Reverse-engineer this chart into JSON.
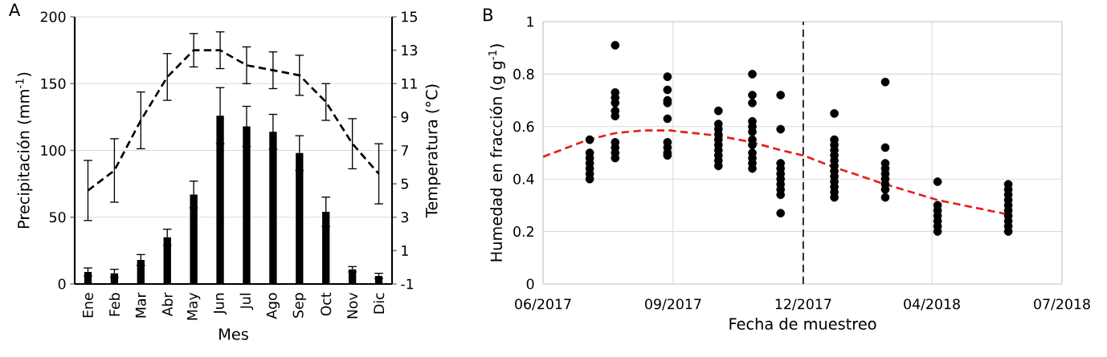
{
  "chart_data": [
    {
      "type": "bar",
      "title": "A",
      "xlabel": "Mes",
      "ylabel": "Precipitación (mm$^{-1}$)",
      "y2label": "Temperatura (°C)",
      "categories": [
        "Ene",
        "Feb",
        "Mar",
        "Abr",
        "May",
        "Jun",
        "Jul",
        "Ago",
        "Sep",
        "Oct",
        "Nov",
        "Dic"
      ],
      "series": [
        {
          "color": "#000000",
          "values": [
            9,
            8,
            18,
            35,
            67,
            126,
            118,
            114,
            98,
            54,
            11,
            6
          ],
          "errors": [
            3,
            3,
            4,
            6,
            10,
            21,
            15,
            13,
            13,
            11,
            2,
            2
          ]
        },
        {
          "type": "line",
          "axis": "y2",
          "color": "#000000",
          "line_style": "dashed",
          "marker": "none",
          "values": [
            4.6,
            5.8,
            8.8,
            11.4,
            13.0,
            13.0,
            12.1,
            11.8,
            11.5,
            9.9,
            7.4,
            5.6
          ],
          "errors": [
            1.8,
            1.9,
            1.7,
            1.4,
            1.0,
            1.1,
            1.1,
            1.1,
            1.2,
            1.1,
            1.5,
            1.8
          ]
        }
      ],
      "ylim": [
        0,
        200
      ],
      "yticks": [
        0,
        50,
        100,
        150,
        200
      ],
      "y2lim": [
        -1,
        15
      ],
      "y2ticks": [
        -1,
        1,
        3,
        5,
        7,
        9,
        11,
        13,
        15
      ],
      "grid": "y"
    },
    {
      "type": "scatter",
      "title": "B",
      "xlabel": "Fecha de muestreo",
      "ylabel": "Humedad en fracción (g g$^{-1}$)",
      "series": [
        {
          "color": "#000000",
          "marker": "circle",
          "x": [
            "2017-08-02",
            "2017-08-02",
            "2017-08-02",
            "2017-08-02",
            "2017-08-02",
            "2017-08-02",
            "2017-08-02",
            "2017-08-20",
            "2017-08-20",
            "2017-08-20",
            "2017-08-20",
            "2017-08-20",
            "2017-08-20",
            "2017-08-20",
            "2017-08-20",
            "2017-08-20",
            "2017-08-20",
            "2017-09-26",
            "2017-09-26",
            "2017-09-26",
            "2017-09-26",
            "2017-09-26",
            "2017-09-26",
            "2017-09-26",
            "2017-09-26",
            "2017-09-26",
            "2017-11-01",
            "2017-11-01",
            "2017-11-01",
            "2017-11-01",
            "2017-11-01",
            "2017-11-01",
            "2017-11-01",
            "2017-11-01",
            "2017-11-01",
            "2017-11-01",
            "2017-11-25",
            "2017-11-25",
            "2017-11-25",
            "2017-11-25",
            "2017-11-25",
            "2017-11-25",
            "2017-11-25",
            "2017-11-25",
            "2017-11-25",
            "2017-11-25",
            "2017-11-25",
            "2017-11-25",
            "2017-12-15",
            "2017-12-15",
            "2017-12-15",
            "2017-12-15",
            "2017-12-15",
            "2017-12-15",
            "2017-12-15",
            "2017-12-15",
            "2017-12-15",
            "2017-12-15",
            "2018-01-22",
            "2018-01-22",
            "2018-01-22",
            "2018-01-22",
            "2018-01-22",
            "2018-01-22",
            "2018-01-22",
            "2018-01-22",
            "2018-01-22",
            "2018-01-22",
            "2018-01-22",
            "2018-01-22",
            "2018-01-22",
            "2018-02-27",
            "2018-02-27",
            "2018-02-27",
            "2018-02-27",
            "2018-02-27",
            "2018-02-27",
            "2018-02-27",
            "2018-02-27",
            "2018-02-27",
            "2018-04-05",
            "2018-04-05",
            "2018-04-05",
            "2018-04-05",
            "2018-04-05",
            "2018-04-05",
            "2018-04-05",
            "2018-05-25",
            "2018-05-25",
            "2018-05-25",
            "2018-05-25",
            "2018-05-25",
            "2018-05-25",
            "2018-05-25",
            "2018-05-25",
            "2018-05-25",
            "2018-05-25"
          ],
          "values": [
            0.55,
            0.5,
            0.48,
            0.46,
            0.44,
            0.42,
            0.4,
            0.91,
            0.73,
            0.71,
            0.69,
            0.66,
            0.64,
            0.54,
            0.52,
            0.5,
            0.48,
            0.79,
            0.74,
            0.7,
            0.69,
            0.63,
            0.54,
            0.52,
            0.5,
            0.49,
            0.66,
            0.61,
            0.59,
            0.57,
            0.55,
            0.53,
            0.51,
            0.49,
            0.47,
            0.45,
            0.8,
            0.72,
            0.69,
            0.62,
            0.6,
            0.58,
            0.55,
            0.53,
            0.5,
            0.48,
            0.46,
            0.44,
            0.72,
            0.59,
            0.46,
            0.44,
            0.42,
            0.4,
            0.38,
            0.36,
            0.34,
            0.27,
            0.65,
            0.55,
            0.53,
            0.51,
            0.49,
            0.47,
            0.45,
            0.43,
            0.41,
            0.39,
            0.37,
            0.35,
            0.33,
            0.77,
            0.52,
            0.46,
            0.44,
            0.42,
            0.4,
            0.38,
            0.36,
            0.33,
            0.39,
            0.3,
            0.28,
            0.26,
            0.24,
            0.22,
            0.2,
            0.38,
            0.36,
            0.34,
            0.32,
            0.3,
            0.28,
            0.26,
            0.24,
            0.22,
            0.2
          ]
        },
        {
          "type": "line",
          "color": "#e32119",
          "line_style": "dashed",
          "marker": "none",
          "x": [
            "2017-06-30",
            "2017-08-01",
            "2017-08-20",
            "2017-09-08",
            "2017-09-28",
            "2017-11-01",
            "2017-11-25",
            "2017-12-15",
            "2017-12-31",
            "2018-01-22",
            "2018-02-27",
            "2018-04-05",
            "2018-05-25"
          ],
          "values": [
            0.485,
            0.55,
            0.575,
            0.585,
            0.585,
            0.565,
            0.54,
            0.51,
            0.49,
            0.445,
            0.38,
            0.32,
            0.265
          ]
        }
      ],
      "xlim": [
        "2017-06-30",
        "2018-07-02"
      ],
      "xticks": [
        {
          "value": "2017-06-30",
          "label": "06/2017"
        },
        {
          "value": "2017-09-30",
          "label": "09/2017"
        },
        {
          "value": "2017-12-31",
          "label": "12/2017"
        },
        {
          "value": "2018-04-01",
          "label": "04/2018"
        },
        {
          "value": "2018-07-02",
          "label": "07/2018"
        }
      ],
      "ylim": [
        0,
        1
      ],
      "yticks": [
        0,
        0.2,
        0.4,
        0.6,
        0.8,
        1
      ],
      "grid": true,
      "ref_lines": [
        {
          "axis": "x",
          "value": "2017-12-31",
          "color": "#000000",
          "line_style": "dashed"
        }
      ]
    }
  ]
}
